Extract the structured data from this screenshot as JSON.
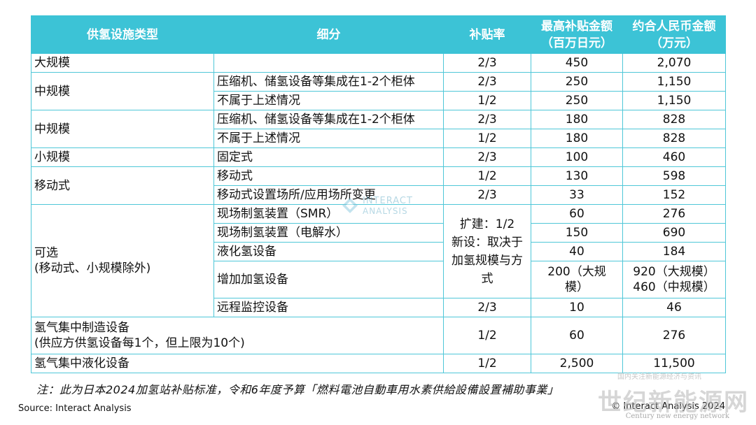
{
  "headers": {
    "type": "供氢设施类型",
    "detail": "细分",
    "rate": "补贴率",
    "max_l1": "最高补贴金额",
    "max_l2": "（百万日元）",
    "rmb_l1": "约合人民币金额",
    "rmb_l2": "（万元）"
  },
  "rows": [
    {
      "type": "大规模",
      "detail": "",
      "rate": "2/3",
      "max": "450",
      "rmb": "2,070"
    },
    {
      "type": "中规模",
      "detail": "压缩机、储氢设备等集成在1-2个柜体",
      "rate": "2/3",
      "max": "250",
      "rmb": "1,150"
    },
    {
      "detail": "不属于上述情况",
      "rate": "1/2",
      "max": "250",
      "rmb": "1,150"
    },
    {
      "type": "中规模",
      "detail": "压缩机、储氢设备等集成在1-2个柜体",
      "rate": "2/3",
      "max": "180",
      "rmb": "828"
    },
    {
      "detail": "不属于上述情况",
      "rate": "1/2",
      "max": "180",
      "rmb": "828"
    },
    {
      "type": "小规模",
      "detail": "固定式",
      "rate": "2/3",
      "max": "100",
      "rmb": "460"
    },
    {
      "type": "移动式",
      "detail": "移动式",
      "rate": "1/2",
      "max": "130",
      "rmb": "598"
    },
    {
      "detail": "移动式设置场所/应用场所变更",
      "rate": "2/3",
      "max": "33",
      "rmb": "152"
    },
    {
      "type_l1": "可选",
      "type_l2": "(移动式、小规模除外)",
      "detail": "现场制氢装置（SMR）",
      "rate_l1": "扩建：1/2",
      "rate_l2": "新设：取决于",
      "rate_l3": "加氢规模与方",
      "rate_l4": "式",
      "max": "60",
      "rmb": "276"
    },
    {
      "detail": "现场制氢装置（电解水）",
      "max": "150",
      "rmb": "690"
    },
    {
      "detail": "液化氢设备",
      "max": "40",
      "rmb": "184"
    },
    {
      "detail": "增加加氢设备",
      "max_l1": "200（大规",
      "max_l2": "模）",
      "rmb_l1": "920（大规模）",
      "rmb_l2": "460（中规模）"
    },
    {
      "detail": "远程监控设备",
      "rate": "2/3",
      "max": "10",
      "rmb": "46"
    },
    {
      "type_l1": "氢气集中制造设备",
      "type_l2": "(供应方供氢设备每1个，但上限为10个)",
      "rate": "1/2",
      "max": "60",
      "rmb": "276"
    },
    {
      "type": "氢气集中液化设备",
      "rate": "1/2",
      "max": "2,500",
      "rmb": "11,500"
    }
  ],
  "note": "注：此为日本2024加氢站补贴标准，令和6年度予算「燃料電池自動車用水素供給設備設置補助事業」",
  "source": "Source: Interact Analysis",
  "copyright": "© Interact Analysis 2024",
  "watermark": {
    "brand_top": "INTERACT",
    "brand_bottom": "ANALYSIS",
    "cn_title": "世纪新能源网",
    "cn_sub": "Century new energy network",
    "cn_tiny": "国内关注新能源经济与资讯"
  },
  "colors": {
    "header_bg": "#3cc3d6",
    "border": "#4fc7d8"
  }
}
